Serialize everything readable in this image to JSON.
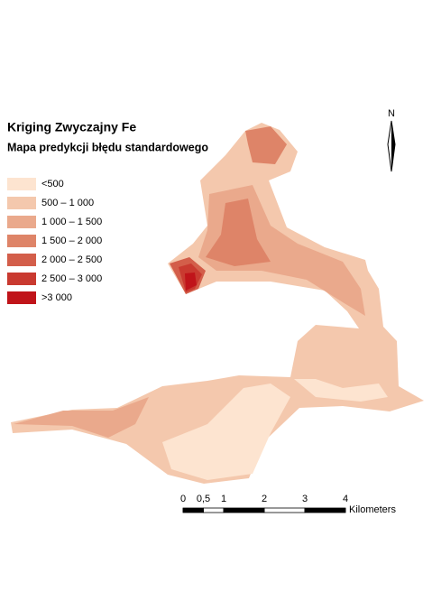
{
  "title": "Kriging Zwyczajny Fe",
  "subtitle": "Mapa predykcji błędu standardowego",
  "legend": [
    {
      "label": "<500",
      "color": "#fde4d0"
    },
    {
      "label": "500 – 1 000",
      "color": "#f4c8ad"
    },
    {
      "label": "1 000 – 1 500",
      "color": "#eaa98c"
    },
    {
      "label": "1 500 – 2 000",
      "color": "#de8468"
    },
    {
      "label": "2 000 – 2 500",
      "color": "#d35e4a"
    },
    {
      "label": "2 500 – 3 000",
      "color": "#c93a30"
    },
    {
      "label": ">3 000",
      "color": "#c0141a"
    }
  ],
  "north_arrow": "N",
  "scale_bar": {
    "unit": "Kilometers",
    "ticks": [
      0,
      {
        "value": 0.5,
        "label": "0,5"
      },
      1,
      2,
      3,
      4
    ]
  }
}
